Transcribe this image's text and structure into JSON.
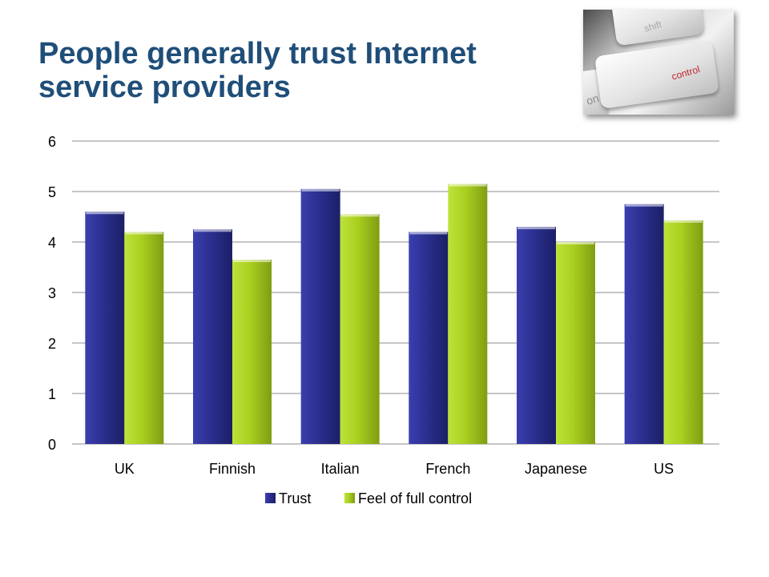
{
  "slide": {
    "title": "People generally trust Internet service providers"
  },
  "photo": {
    "key_label_main": "control",
    "key_label_top": "shift",
    "key_label_left": "on"
  },
  "chart_data": {
    "type": "bar",
    "categories": [
      "UK",
      "Finnish",
      "Italian",
      "French",
      "Japanese",
      "US"
    ],
    "series": [
      {
        "name": "Trust",
        "values": [
          4.6,
          4.25,
          5.05,
          4.2,
          4.3,
          4.75
        ],
        "color": "#2b2f8f"
      },
      {
        "name": "Feel of full control",
        "values": [
          4.2,
          3.65,
          4.55,
          5.15,
          4.0,
          4.43
        ],
        "color": "#a9cf1f"
      }
    ],
    "yticks": [
      "0",
      "1",
      "2",
      "3",
      "4",
      "5",
      "6"
    ],
    "ylim": [
      0,
      6
    ],
    "grid": true,
    "legend": "bottom",
    "xlabel": "",
    "ylabel": ""
  }
}
